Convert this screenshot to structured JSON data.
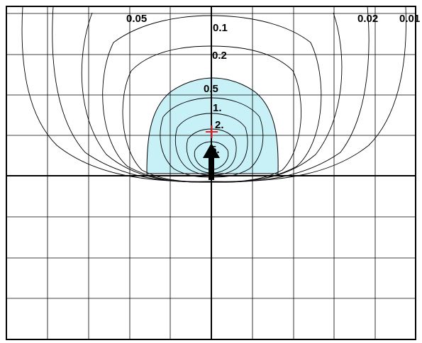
{
  "chart_data": {
    "type": "contour",
    "grid": true,
    "contour_levels": [
      "0.01",
      "0.02",
      "0.05",
      "0.1",
      "0.2",
      "0.5",
      "1.",
      "2.",
      "5."
    ],
    "highlighted_region": "0.5",
    "labels": {
      "c001": "0.01",
      "c002": "0.02",
      "c005": "0.05",
      "c01": "0.1",
      "c02": "0.2",
      "c05": "0.5",
      "c1": "1.",
      "c2": "2.",
      "c5": "5."
    },
    "markers": [
      {
        "name": "source-cross",
        "shape": "plus"
      },
      {
        "name": "direction-arrow",
        "shape": "arrow",
        "direction": "up"
      }
    ],
    "colors": {
      "highlight_fill": "#c8f1f7",
      "cross": "#e8232a",
      "lines": "#000000",
      "background": "#ffffff"
    }
  }
}
